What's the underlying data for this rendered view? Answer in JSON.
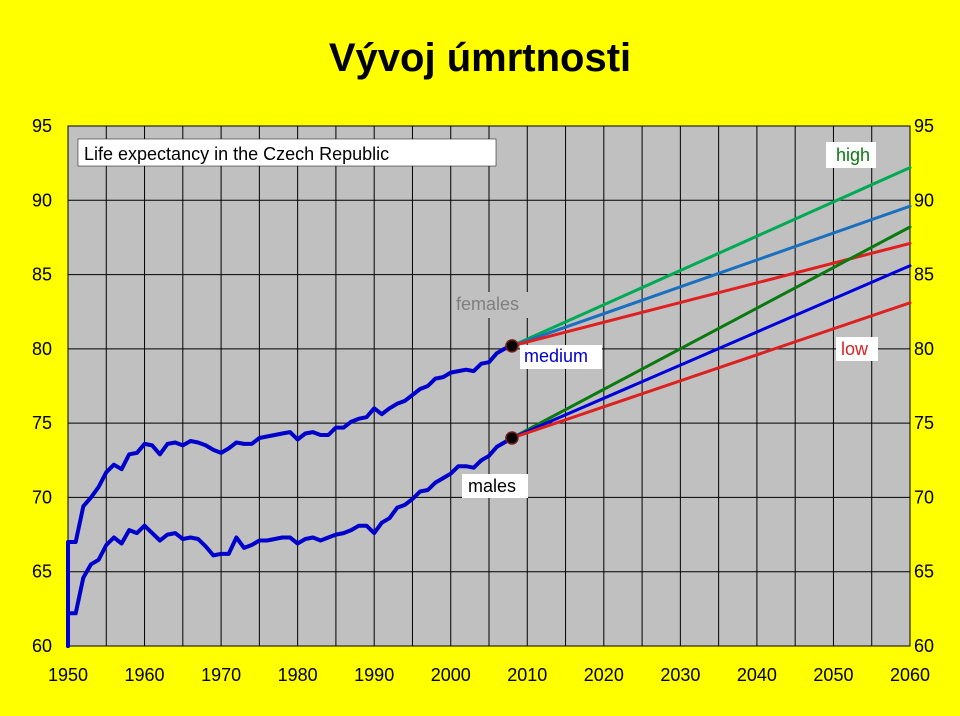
{
  "title": "Vývoj úmrtnosti",
  "chart_data": {
    "type": "line",
    "title": "Life expectancy in the Czech Republic",
    "xlabel": "",
    "ylabel": "",
    "xlim": [
      1950,
      2060
    ],
    "ylim": [
      60,
      95
    ],
    "x_ticks": [
      1950,
      1960,
      1970,
      1980,
      1990,
      2000,
      2010,
      2020,
      2030,
      2040,
      2050,
      2060
    ],
    "y_ticks": [
      60,
      65,
      70,
      75,
      80,
      85,
      90,
      95
    ],
    "grid": true,
    "annotations": {
      "females": "females",
      "males": "males",
      "high": "high",
      "medium": "medium",
      "low": "low"
    },
    "series": [
      {
        "name": "females",
        "color": "#0000cc",
        "kind": "observed",
        "x": [
          1950,
          1950,
          1951,
          1952,
          1953,
          1954,
          1955,
          1956,
          1957,
          1958,
          1959,
          1960,
          1961,
          1962,
          1963,
          1964,
          1965,
          1966,
          1967,
          1968,
          1969,
          1970,
          1971,
          1972,
          1973,
          1974,
          1975,
          1976,
          1977,
          1978,
          1979,
          1980,
          1981,
          1982,
          1983,
          1984,
          1985,
          1986,
          1987,
          1988,
          1989,
          1990,
          1991,
          1992,
          1993,
          1994,
          1995,
          1996,
          1997,
          1998,
          1999,
          2000,
          2001,
          2002,
          2003,
          2004,
          2005,
          2006,
          2007,
          2008
        ],
        "y": [
          60,
          67,
          67,
          69.4,
          70,
          70.7,
          71.7,
          72.2,
          71.9,
          72.9,
          73,
          73.6,
          73.5,
          72.9,
          73.6,
          73.7,
          73.5,
          73.8,
          73.7,
          73.5,
          73.2,
          73,
          73.3,
          73.7,
          73.6,
          73.6,
          74,
          74.1,
          74.2,
          74.3,
          74.4,
          73.9,
          74.3,
          74.4,
          74.2,
          74.2,
          74.7,
          74.7,
          75.1,
          75.3,
          75.4,
          76,
          75.6,
          76,
          76.3,
          76.5,
          76.9,
          77.3,
          77.5,
          78,
          78.1,
          78.4,
          78.5,
          78.6,
          78.5,
          79,
          79.1,
          79.7,
          80,
          80.2
        ]
      },
      {
        "name": "males",
        "color": "#0000cc",
        "kind": "observed",
        "x": [
          1950,
          1950,
          1951,
          1952,
          1953,
          1954,
          1955,
          1956,
          1957,
          1958,
          1959,
          1960,
          1961,
          1962,
          1963,
          1964,
          1965,
          1966,
          1967,
          1968,
          1969,
          1970,
          1971,
          1972,
          1973,
          1974,
          1975,
          1976,
          1977,
          1978,
          1979,
          1980,
          1981,
          1982,
          1983,
          1984,
          1985,
          1986,
          1987,
          1988,
          1989,
          1990,
          1991,
          1992,
          1993,
          1994,
          1995,
          1996,
          1997,
          1998,
          1999,
          2000,
          2001,
          2002,
          2003,
          2004,
          2005,
          2006,
          2007,
          2008
        ],
        "y": [
          60,
          62.2,
          62.2,
          64.6,
          65.5,
          65.8,
          66.8,
          67.3,
          66.9,
          67.8,
          67.6,
          68.1,
          67.6,
          67.1,
          67.5,
          67.6,
          67.2,
          67.3,
          67.2,
          66.7,
          66.1,
          66.2,
          66.2,
          67.3,
          66.6,
          66.8,
          67.1,
          67.1,
          67.2,
          67.3,
          67.3,
          66.9,
          67.2,
          67.3,
          67.1,
          67.3,
          67.5,
          67.6,
          67.8,
          68.1,
          68.1,
          67.6,
          68.3,
          68.6,
          69.3,
          69.5,
          69.9,
          70.4,
          70.5,
          71,
          71.3,
          71.6,
          72.1,
          72.1,
          72,
          72.5,
          72.8,
          73.4,
          73.7,
          74
        ]
      },
      {
        "name": "females high",
        "color": "#00aa55",
        "kind": "projection",
        "x": [
          2008,
          2060
        ],
        "y": [
          80.2,
          92.2
        ]
      },
      {
        "name": "females medium",
        "color": "#1a6fc0",
        "kind": "projection",
        "x": [
          2008,
          2060
        ],
        "y": [
          80.2,
          89.6
        ]
      },
      {
        "name": "females low",
        "color": "#e02020",
        "kind": "projection",
        "x": [
          2008,
          2060
        ],
        "y": [
          80.2,
          87.1
        ]
      },
      {
        "name": "males high",
        "color": "#0a7a10",
        "kind": "projection",
        "x": [
          2008,
          2060
        ],
        "y": [
          74,
          88.2
        ]
      },
      {
        "name": "males medium",
        "color": "#0000dd",
        "kind": "projection",
        "x": [
          2008,
          2060
        ],
        "y": [
          74,
          85.6
        ]
      },
      {
        "name": "males low",
        "color": "#dd2020",
        "kind": "projection",
        "x": [
          2008,
          2060
        ],
        "y": [
          74,
          83.1
        ]
      }
    ],
    "markers": [
      {
        "x": 2008,
        "y": 80.2
      },
      {
        "x": 2008,
        "y": 74
      }
    ]
  }
}
